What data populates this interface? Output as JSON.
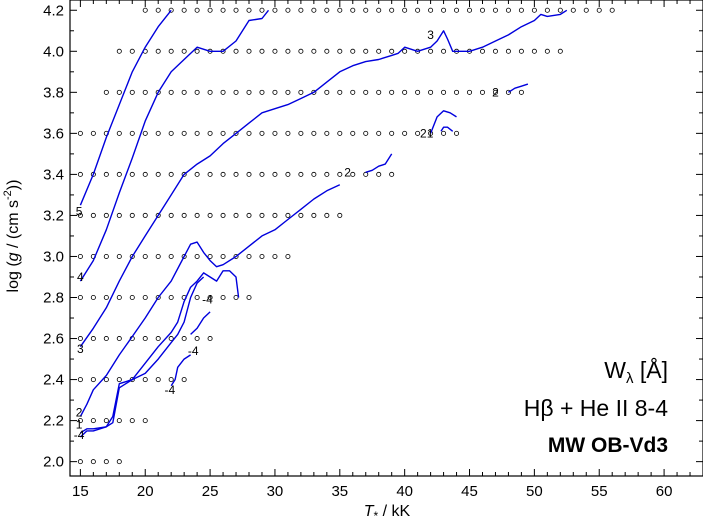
{
  "chart_data": {
    "type": "line",
    "xlim": [
      14.2,
      63
    ],
    "ylim": [
      1.93,
      4.25
    ],
    "xlabel": {
      "main": "T",
      "sub": "*",
      "rest": " / kK"
    },
    "ylabel": {
      "prefix": "log (",
      "g": "g",
      "unit": " / (cm s",
      "sup": "-2",
      "close": "))"
    },
    "x_ticks": [
      15,
      20,
      25,
      30,
      35,
      40,
      45,
      50,
      55,
      60
    ],
    "y_ticks": [
      2.0,
      2.2,
      2.4,
      2.6,
      2.8,
      3.0,
      3.2,
      3.4,
      3.6,
      3.8,
      4.0,
      4.2
    ],
    "legend": {
      "line1_main": "W",
      "line1_sub": "λ",
      "line1_rest": "  [Å]",
      "line2": "Hβ + He II 8-4",
      "line3": "MW OB-Vd3"
    },
    "grid_models": [
      {
        "logg": 4.2,
        "teff_from": 20,
        "teff_to": 56
      },
      {
        "logg": 4.0,
        "teff_from": 18,
        "teff_to": 52
      },
      {
        "logg": 3.8,
        "teff_from": 17,
        "teff_to": 49
      },
      {
        "logg": 3.6,
        "teff_from": 15,
        "teff_to": 44
      },
      {
        "logg": 3.4,
        "teff_from": 15,
        "teff_to": 39
      },
      {
        "logg": 3.2,
        "teff_from": 15,
        "teff_to": 35
      },
      {
        "logg": 3.0,
        "teff_from": 15,
        "teff_to": 31
      },
      {
        "logg": 2.8,
        "teff_from": 15,
        "teff_to": 28
      },
      {
        "logg": 2.6,
        "teff_from": 15,
        "teff_to": 25
      },
      {
        "logg": 2.4,
        "teff_from": 15,
        "teff_to": 23
      },
      {
        "logg": 2.2,
        "teff_from": 15,
        "teff_to": 20
      },
      {
        "logg": 2.0,
        "teff_from": 15,
        "teff_to": 18
      }
    ],
    "series": [
      {
        "label": "5",
        "points": [
          [
            15.0,
            3.25
          ],
          [
            16.0,
            3.4
          ],
          [
            17.0,
            3.58
          ],
          [
            18.0,
            3.74
          ],
          [
            19.0,
            3.9
          ],
          [
            20.0,
            4.02
          ],
          [
            21.0,
            4.12
          ],
          [
            22.0,
            4.2
          ]
        ]
      },
      {
        "label": "4",
        "points": [
          [
            15.0,
            2.88
          ],
          [
            16.0,
            2.98
          ],
          [
            17.0,
            3.13
          ],
          [
            18.0,
            3.31
          ],
          [
            19.0,
            3.48
          ],
          [
            20.0,
            3.66
          ],
          [
            21.0,
            3.8
          ],
          [
            22.0,
            3.9
          ],
          [
            23.0,
            3.96
          ],
          [
            24.0,
            4.02
          ],
          [
            25.0,
            4.0
          ],
          [
            26.0,
            4.0
          ],
          [
            27.0,
            4.05
          ],
          [
            28.0,
            4.15
          ],
          [
            29.0,
            4.16
          ],
          [
            29.5,
            4.2
          ]
        ]
      },
      {
        "label": "3",
        "points": [
          [
            15.0,
            2.56
          ],
          [
            16.0,
            2.65
          ],
          [
            17.0,
            2.75
          ],
          [
            18.0,
            2.88
          ],
          [
            19.0,
            3.0
          ],
          [
            20.0,
            3.1
          ],
          [
            21.0,
            3.2
          ],
          [
            22.0,
            3.3
          ],
          [
            23.0,
            3.4
          ],
          [
            24.0,
            3.45
          ],
          [
            25.0,
            3.49
          ],
          [
            26.0,
            3.55
          ],
          [
            27.0,
            3.6
          ],
          [
            28.0,
            3.65
          ],
          [
            29.0,
            3.7
          ],
          [
            30.0,
            3.72
          ],
          [
            31.0,
            3.74
          ],
          [
            32.0,
            3.77
          ],
          [
            33.0,
            3.8
          ],
          [
            34.0,
            3.85
          ],
          [
            35.0,
            3.9
          ],
          [
            36.0,
            3.93
          ],
          [
            37.0,
            3.95
          ],
          [
            38.0,
            3.96
          ],
          [
            39.0,
            3.98
          ],
          [
            39.5,
            3.99
          ],
          [
            40.0,
            4.02
          ],
          [
            41.0,
            4.0
          ],
          [
            42.0,
            4.02
          ],
          [
            42.5,
            4.05
          ],
          [
            43.0,
            4.1
          ],
          [
            43.3,
            4.06
          ],
          [
            43.7,
            4.0
          ],
          [
            44.0,
            4.0
          ],
          [
            45.0,
            4.0
          ],
          [
            46.0,
            4.02
          ],
          [
            47.0,
            4.05
          ],
          [
            48.0,
            4.08
          ],
          [
            49.0,
            4.12
          ],
          [
            50.0,
            4.15
          ],
          [
            50.5,
            4.18
          ],
          [
            51.0,
            4.17
          ],
          [
            52.0,
            4.18
          ],
          [
            52.5,
            4.2
          ]
        ]
      },
      {
        "label": "2",
        "points": [
          [
            15.0,
            2.22
          ],
          [
            15.5,
            2.28
          ],
          [
            16.0,
            2.35
          ],
          [
            17.0,
            2.42
          ],
          [
            18.0,
            2.52
          ],
          [
            19.0,
            2.61
          ],
          [
            20.0,
            2.7
          ],
          [
            21.0,
            2.8
          ],
          [
            22.0,
            2.88
          ],
          [
            23.0,
            3.0
          ],
          [
            23.5,
            3.06
          ],
          [
            24.0,
            3.07
          ],
          [
            24.5,
            3.02
          ],
          [
            25.0,
            2.98
          ],
          [
            25.5,
            2.95
          ],
          [
            26.0,
            2.96
          ],
          [
            27.0,
            3.0
          ],
          [
            28.0,
            3.05
          ],
          [
            29.0,
            3.1
          ],
          [
            30.0,
            3.13
          ],
          [
            31.0,
            3.18
          ],
          [
            32.0,
            3.23
          ],
          [
            33.0,
            3.28
          ],
          [
            34.0,
            3.32
          ],
          [
            35.0,
            3.35
          ]
        ]
      },
      {
        "label": "-4",
        "points": [
          [
            15.0,
            2.14
          ],
          [
            15.5,
            2.16
          ],
          [
            16.0,
            2.16
          ],
          [
            17.0,
            2.17
          ],
          [
            17.5,
            2.19
          ],
          [
            18.0,
            2.36
          ],
          [
            18.5,
            2.38
          ],
          [
            19.0,
            2.4
          ],
          [
            20.0,
            2.48
          ],
          [
            21.0,
            2.56
          ],
          [
            22.0,
            2.63
          ],
          [
            22.5,
            2.68
          ],
          [
            23.0,
            2.78
          ],
          [
            23.5,
            2.85
          ],
          [
            24.0,
            2.88
          ],
          [
            24.5,
            2.92
          ],
          [
            25.0,
            2.9
          ],
          [
            25.5,
            2.88
          ],
          [
            26.0,
            2.93
          ],
          [
            26.5,
            2.93
          ],
          [
            27.0,
            2.9
          ],
          [
            27.2,
            2.8
          ]
        ]
      },
      {
        "label": "-4",
        "points": [
          [
            15.0,
            2.12
          ],
          [
            15.5,
            2.15
          ],
          [
            16.0,
            2.15
          ],
          [
            17.0,
            2.17
          ],
          [
            17.5,
            2.22
          ],
          [
            18.0,
            2.38
          ],
          [
            19.0,
            2.4
          ],
          [
            20.0,
            2.43
          ],
          [
            21.0,
            2.5
          ],
          [
            22.0,
            2.58
          ],
          [
            22.5,
            2.62
          ],
          [
            23.0,
            2.68
          ],
          [
            23.5,
            2.8
          ],
          [
            24.0,
            2.87
          ],
          [
            24.5,
            2.9
          ]
        ]
      },
      {
        "label": "-4",
        "points": [
          [
            22.0,
            2.37
          ],
          [
            22.3,
            2.4
          ],
          [
            22.5,
            2.46
          ],
          [
            23.0,
            2.5
          ],
          [
            23.5,
            2.52
          ]
        ]
      },
      {
        "label": "-4",
        "points": [
          [
            23.5,
            2.62
          ],
          [
            24.0,
            2.65
          ],
          [
            24.5,
            2.7
          ],
          [
            25.0,
            2.73
          ]
        ]
      },
      {
        "label": "2",
        "points": [
          [
            37.0,
            3.41
          ],
          [
            37.5,
            3.42
          ],
          [
            38.0,
            3.44
          ],
          [
            38.5,
            3.45
          ],
          [
            39.0,
            3.5
          ]
        ]
      },
      {
        "label": "1",
        "points": [
          [
            42.0,
            3.6
          ],
          [
            42.5,
            3.68
          ],
          [
            43.0,
            3.71
          ],
          [
            43.5,
            3.7
          ],
          [
            44.0,
            3.68
          ]
        ]
      },
      {
        "label": "",
        "points": [
          [
            42.8,
            3.61
          ],
          [
            43.0,
            3.63
          ],
          [
            43.3,
            3.63
          ],
          [
            43.7,
            3.61
          ]
        ]
      },
      {
        "label": "",
        "points": [
          [
            48.0,
            3.8
          ],
          [
            48.5,
            3.82
          ],
          [
            49.0,
            3.83
          ],
          [
            49.5,
            3.84
          ]
        ]
      }
    ],
    "contour_labels": [
      {
        "text": "5",
        "x": 14.9,
        "y": 3.22
      },
      {
        "text": "4",
        "x": 15.0,
        "y": 2.9
      },
      {
        "text": "3",
        "x": 15.0,
        "y": 2.55
      },
      {
        "text": "2",
        "x": 14.9,
        "y": 2.24
      },
      {
        "text": "1",
        "x": 14.9,
        "y": 2.18
      },
      {
        "text": "-4",
        "x": 14.9,
        "y": 2.13
      },
      {
        "text": "-4",
        "x": 24.8,
        "y": 2.79
      },
      {
        "text": "-4",
        "x": 23.7,
        "y": 2.54
      },
      {
        "text": "-4",
        "x": 21.9,
        "y": 2.35
      },
      {
        "text": "2",
        "x": 35.6,
        "y": 3.41
      },
      {
        "text": "21",
        "x": 41.7,
        "y": 3.6
      },
      {
        "text": "3",
        "x": 42.0,
        "y": 4.08
      },
      {
        "text": "2",
        "x": 47.0,
        "y": 3.8
      }
    ],
    "colors": {
      "line": "#0000dd",
      "markers": "#000000",
      "axes": "#000000"
    }
  }
}
